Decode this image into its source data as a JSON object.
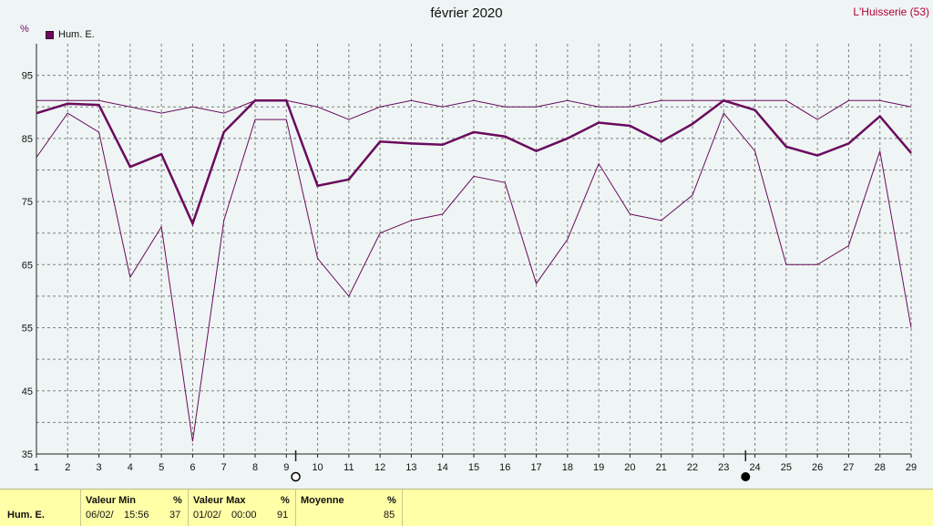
{
  "header": {
    "title": "février 2020",
    "station": "L'Huisserie (53)",
    "unit": "%",
    "legend_label": "Hum. E."
  },
  "colors": {
    "series": "#6b0a5e",
    "grid": "#808080",
    "axis": "#222222",
    "background": "#eef5f4",
    "stats_bg": "#ffffa8"
  },
  "chart_data": {
    "type": "line",
    "title": "février 2020",
    "ylabel": "%",
    "x": [
      1,
      2,
      3,
      4,
      5,
      6,
      7,
      8,
      9,
      10,
      11,
      12,
      13,
      14,
      15,
      16,
      17,
      18,
      19,
      20,
      21,
      22,
      23,
      24,
      25,
      26,
      27,
      28,
      29
    ],
    "ylim": [
      35,
      100
    ],
    "yticks": [
      35,
      45,
      55,
      65,
      75,
      85,
      95
    ],
    "grid": true,
    "legend": "top-left",
    "series": [
      {
        "role": "max",
        "values": [
          91,
          91,
          91,
          90,
          89,
          90,
          89,
          91,
          91,
          90,
          88,
          90,
          91,
          90,
          91,
          90,
          90,
          91,
          90,
          90,
          91,
          91,
          91,
          91,
          91,
          88,
          91,
          91,
          90
        ]
      },
      {
        "role": "mean",
        "name": "Hum. E.",
        "values": [
          89,
          90.5,
          90.3,
          80.5,
          82.5,
          71.5,
          86,
          91,
          91,
          77.5,
          78.5,
          84.5,
          84.2,
          84,
          86,
          85.3,
          83,
          85,
          87.5,
          87,
          84.5,
          87.3,
          91,
          89.5,
          83.7,
          82.3,
          84.2,
          88.5,
          82.7
        ]
      },
      {
        "role": "min",
        "values": [
          82,
          89,
          86,
          63,
          71,
          37,
          72,
          88,
          88,
          66,
          60,
          70,
          72,
          73,
          79,
          78,
          62,
          69,
          81,
          73,
          72,
          76,
          89,
          83,
          65,
          65,
          68,
          83,
          55
        ]
      }
    ],
    "moon_markers": [
      {
        "type": "full-moon",
        "x": 9.3
      },
      {
        "type": "new-moon",
        "x": 23.7
      }
    ]
  },
  "stats": {
    "row_label": "Hum. E.",
    "min": {
      "header": "Valeur Min",
      "unit": "%",
      "date": "06/02/",
      "time": "15:56",
      "value": "37"
    },
    "max": {
      "header": "Valeur Max",
      "unit": "%",
      "date": "01/02/",
      "time": "00:00",
      "value": "91"
    },
    "mean": {
      "header": "Moyenne",
      "unit": "%",
      "value": "85"
    }
  }
}
